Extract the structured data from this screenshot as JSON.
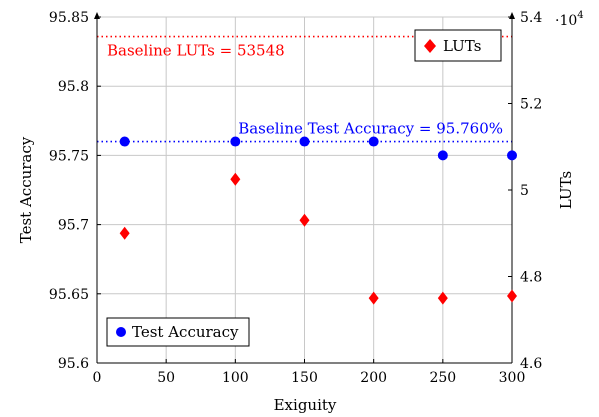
{
  "chart_data": {
    "type": "scatter",
    "x": [
      20,
      100,
      150,
      200,
      250,
      300
    ],
    "xlabel": "Exiguity",
    "xlim": [
      0,
      300
    ],
    "xticks": [
      "0",
      "50",
      "100",
      "150",
      "200",
      "250",
      "300"
    ],
    "xtick_values": [
      0,
      50,
      100,
      150,
      200,
      250,
      300
    ],
    "grid": true,
    "y_left": {
      "label": "Test Accuracy",
      "lim": [
        95.6,
        95.85
      ],
      "ticks": [
        "95.6",
        "95.65",
        "95.7",
        "95.75",
        "95.8",
        "95.85"
      ],
      "tick_values": [
        95.6,
        95.65,
        95.7,
        95.75,
        95.8,
        95.85
      ]
    },
    "y_right": {
      "label": "LUTs",
      "lim": [
        4.6,
        5.4
      ],
      "multiplier": "·10",
      "multiplier_exp": "4",
      "ticks": [
        "4.6",
        "4.8",
        "5",
        "5.2",
        "5.4"
      ],
      "tick_values": [
        4.6,
        4.8,
        5.0,
        5.2,
        5.4
      ]
    },
    "series": [
      {
        "name": "Test Accuracy",
        "axis": "left",
        "marker": "circle",
        "color": "#0000ff",
        "values": [
          95.76,
          95.76,
          95.76,
          95.76,
          95.75,
          95.75
        ]
      },
      {
        "name": "LUTs",
        "axis": "right",
        "marker": "diamond",
        "color": "#ff0000",
        "values": [
          4.9,
          5.025,
          4.93,
          4.75,
          4.75,
          4.755
        ]
      }
    ],
    "baselines": [
      {
        "label": "Baseline Test Accuracy = 95.760%",
        "axis": "left",
        "value": 95.76,
        "color": "#0000ff"
      },
      {
        "label": "Baseline LUTs = 53548",
        "axis": "right",
        "value": 5.3548,
        "color": "#ff0000"
      }
    ],
    "legends": [
      {
        "series": "Test Accuracy",
        "placement": "bottom-left"
      },
      {
        "series": "LUTs",
        "placement": "top-right"
      }
    ]
  }
}
